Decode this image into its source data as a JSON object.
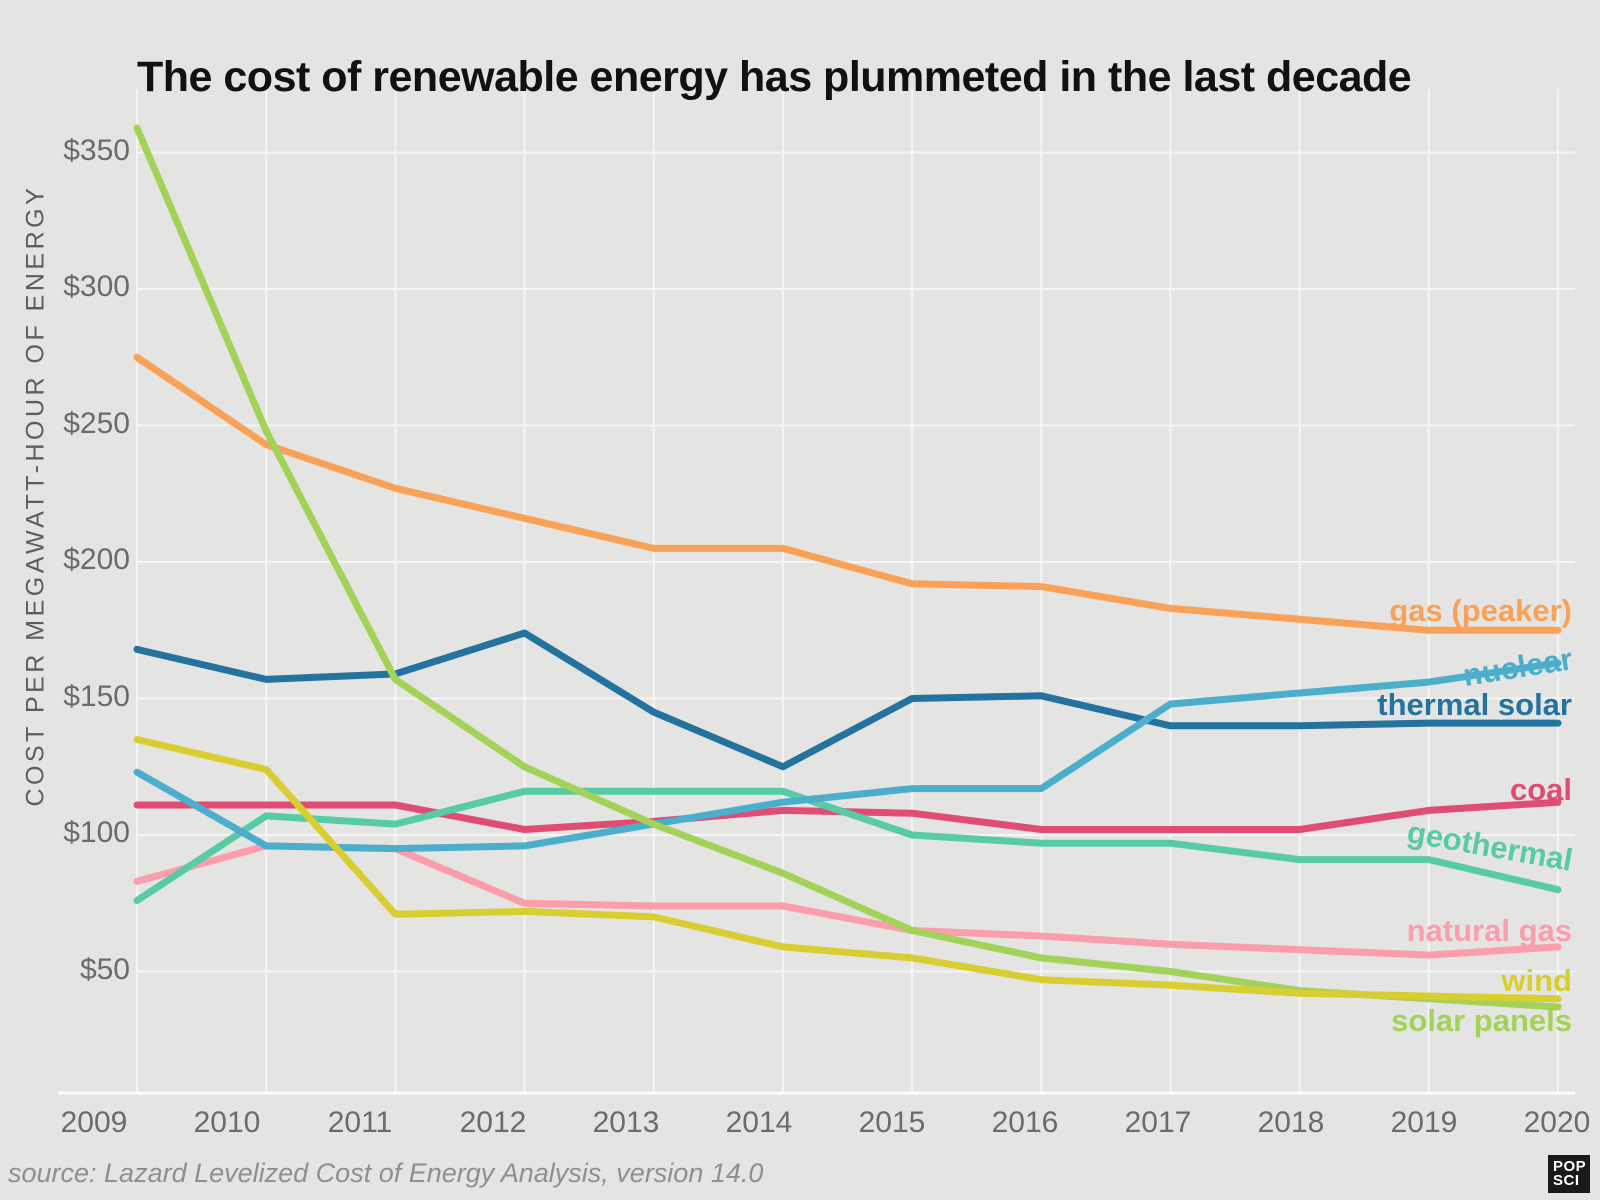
{
  "header": {
    "title": "The cost of renewable energy has plummeted in the last decade"
  },
  "footer": {
    "source": "source: Lazard Levelized Cost of Energy Analysis, version 14.0",
    "logo_line1": "POP",
    "logo_line2": "SCI"
  },
  "chart_data": {
    "type": "line",
    "title": "The cost of renewable energy has plummeted in the last decade",
    "xlabel": "",
    "ylabel": "COST PER MEGAWATT-HOUR OF ENERGY",
    "x": [
      2009,
      2010,
      2011,
      2012,
      2013,
      2014,
      2015,
      2016,
      2017,
      2018,
      2019,
      2020
    ],
    "ylim": [
      25,
      375
    ],
    "grid": true,
    "legend_position": "right-of-lines",
    "y_ticks": [
      {
        "label": "$350",
        "value": 350
      },
      {
        "label": "$300",
        "value": 300
      },
      {
        "label": "$250",
        "value": 250
      },
      {
        "label": "$200",
        "value": 200
      },
      {
        "label": "$150",
        "value": 150
      },
      {
        "label": "$100",
        "value": 100
      },
      {
        "label": "$50",
        "value": 50
      }
    ],
    "series": [
      {
        "key": "gas_peaker",
        "label": "gas (peaker)",
        "color": "#f9a156",
        "values": [
          275,
          243,
          227,
          216,
          205,
          205,
          192,
          191,
          183,
          179,
          175,
          175
        ]
      },
      {
        "key": "nuclear",
        "label": "nuclear",
        "color": "#4aaecc",
        "values": [
          123,
          96,
          95,
          96,
          104,
          112,
          117,
          117,
          148,
          152,
          156,
          163
        ]
      },
      {
        "key": "thermal_solar",
        "label": "thermal solar",
        "color": "#24739f",
        "values": [
          168,
          157,
          159,
          174,
          145,
          125,
          150,
          151,
          140,
          140,
          141,
          141
        ]
      },
      {
        "key": "coal",
        "label": "coal",
        "color": "#e04d72",
        "values": [
          111,
          111,
          111,
          102,
          105,
          109,
          108,
          102,
          102,
          102,
          109,
          112
        ]
      },
      {
        "key": "geothermal",
        "label": "geothermal",
        "color": "#57cba5",
        "values": [
          76,
          107,
          104,
          116,
          116,
          116,
          100,
          97,
          97,
          91,
          91,
          80
        ]
      },
      {
        "key": "natural_gas",
        "label": "natural gas",
        "color": "#fb9daa",
        "values": [
          83,
          96,
          95,
          75,
          74,
          74,
          65,
          63,
          60,
          58,
          56,
          59
        ]
      },
      {
        "key": "wind",
        "label": "wind",
        "color": "#d8ce31",
        "values": [
          135,
          124,
          71,
          72,
          70,
          59,
          55,
          47,
          45,
          42,
          41,
          40
        ]
      },
      {
        "key": "solar_panels",
        "label": "solar panels",
        "color": "#a3d258",
        "values": [
          359,
          248,
          157,
          125,
          104,
          86,
          65,
          55,
          50,
          43,
          40,
          37
        ]
      }
    ],
    "colors": {
      "background": "#e4e4e2",
      "gridline": "#f5f5f3",
      "axis_line": "#fbfbf9",
      "title_text": "#111111",
      "tick_text": "#6b6b6b",
      "axis_title_text": "#5d5d5d",
      "source_text": "#8f8f8f",
      "logo_bg": "#1a1a1a",
      "logo_text": "#ffffff"
    }
  }
}
